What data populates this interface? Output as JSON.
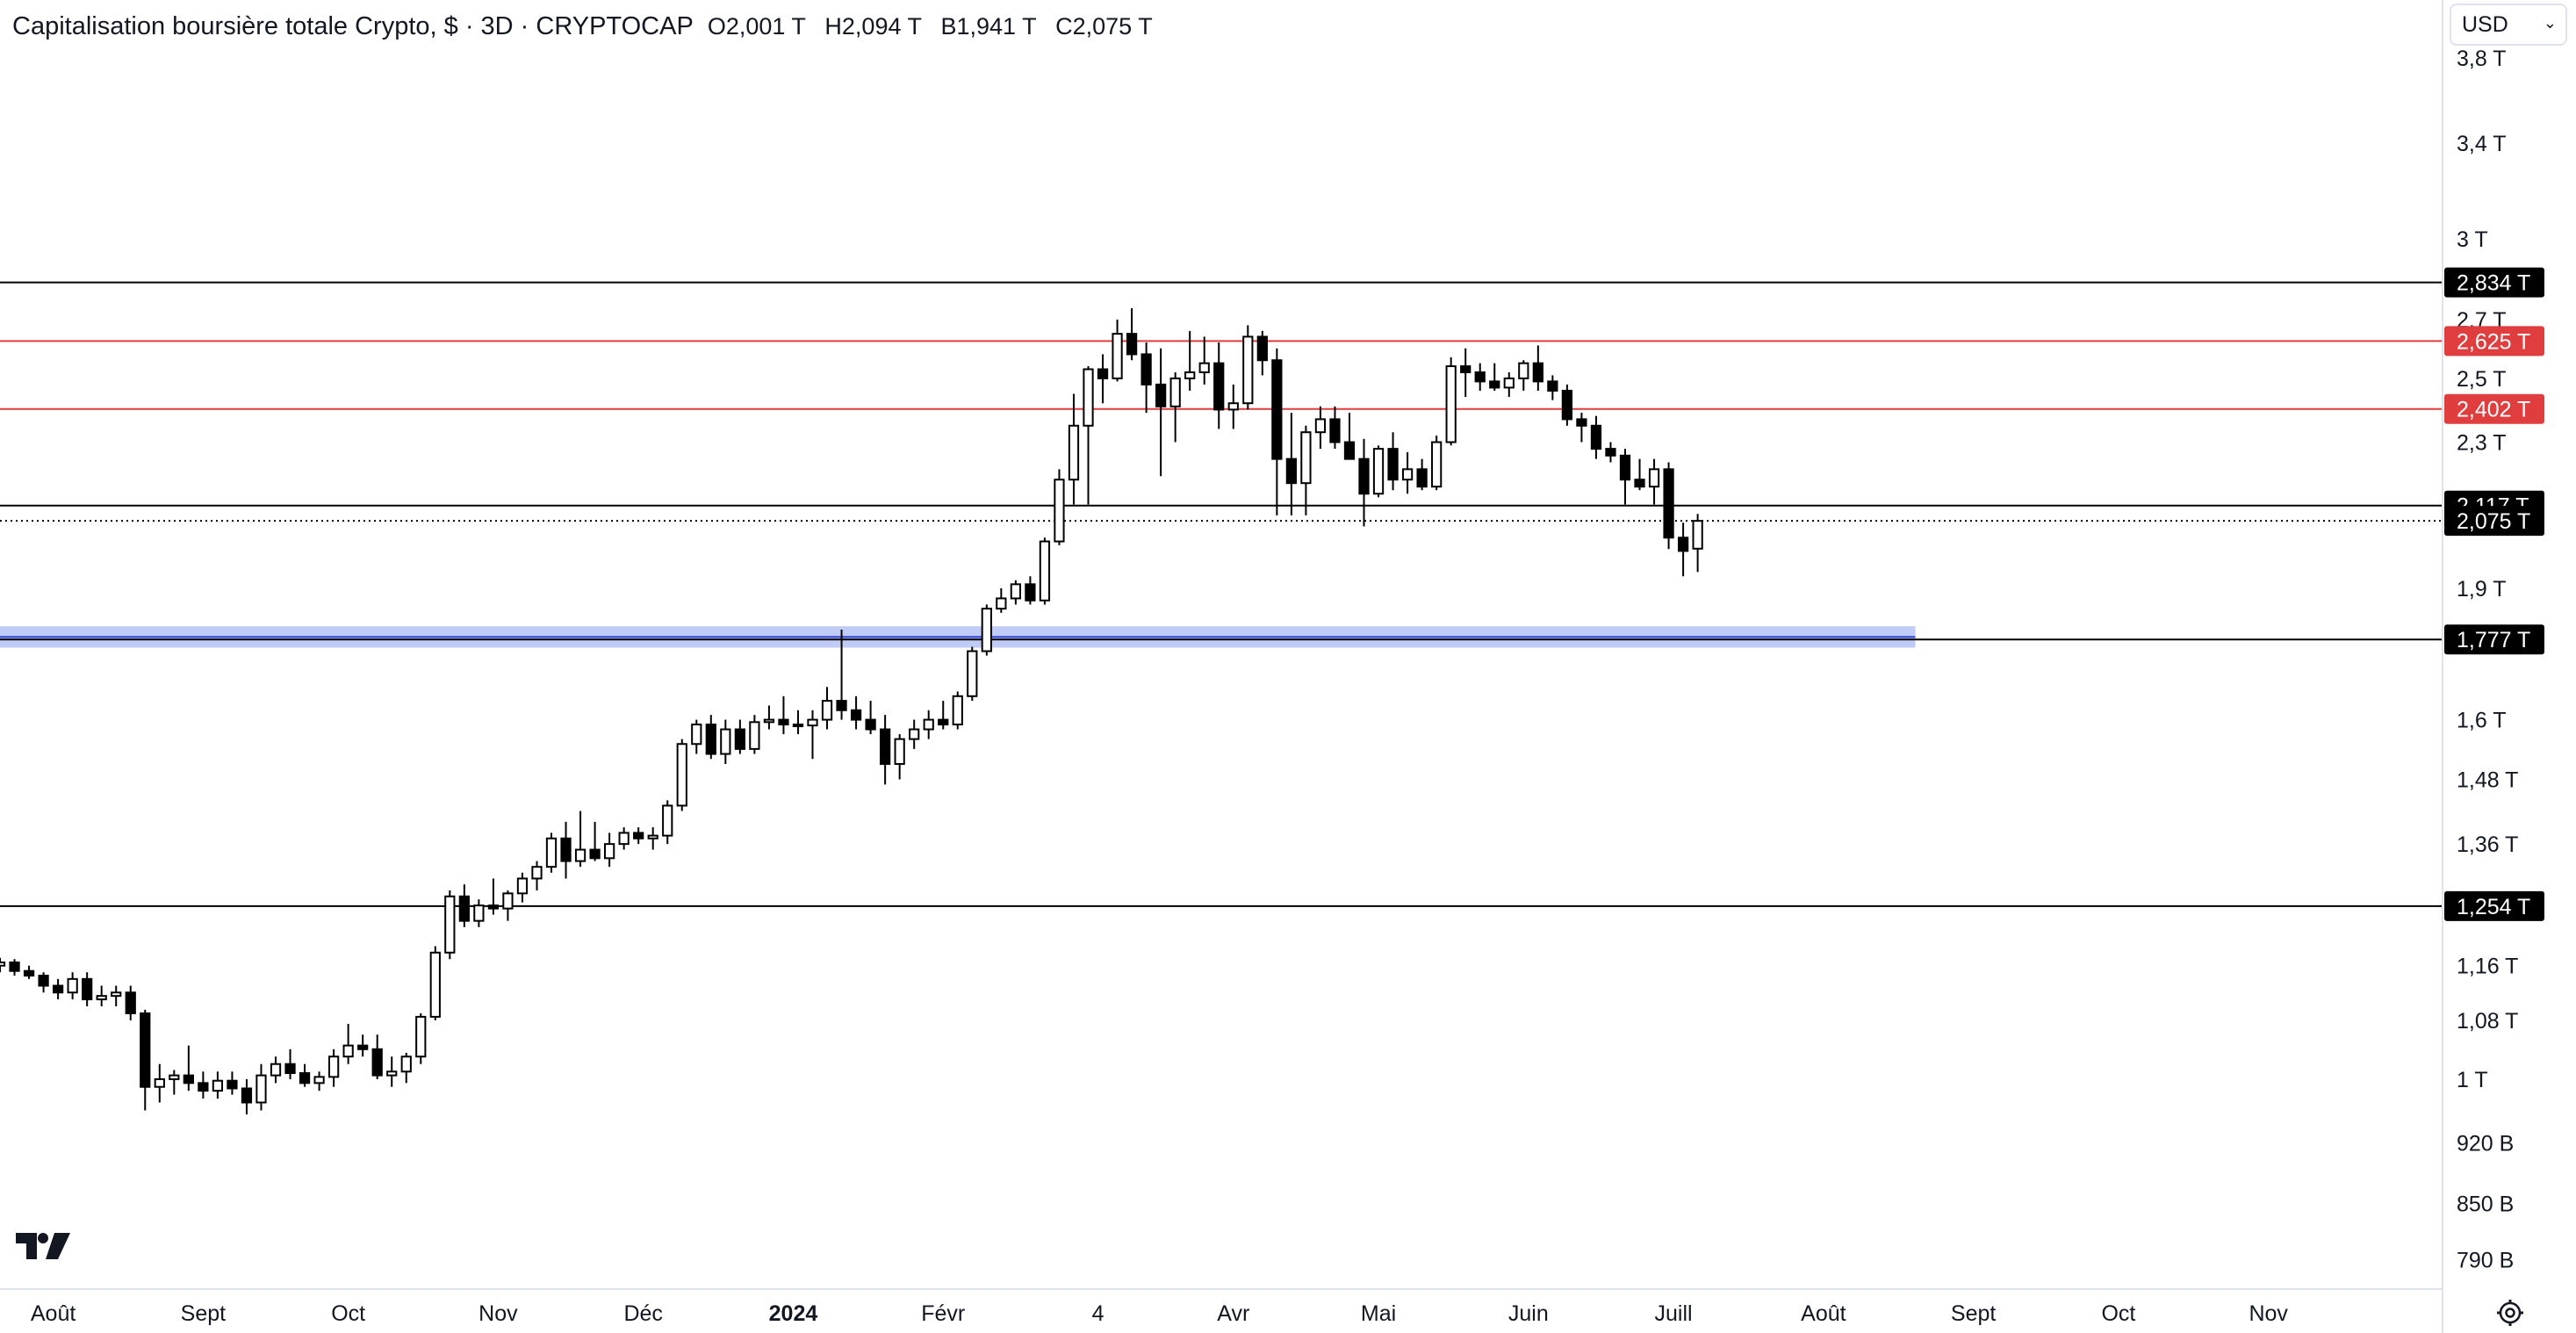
{
  "header": {
    "title": "Capitalisation boursière totale Crypto, $ · 3D · CRYPTOCAP",
    "open": "O2,001 T",
    "high": "H2,094 T",
    "low": "B1,941 T",
    "close": "C2,075 T"
  },
  "currency": {
    "label": "USD",
    "chevron": "chevron-down-icon"
  },
  "icons": {
    "logo": "tradingview-logo",
    "settings": "gear-icon"
  },
  "colors": {
    "background": "#ffffff",
    "up_candle_fill": "#ffffff",
    "down_candle_fill": "#000000",
    "candle_outline": "#000000",
    "support_line": "#000000",
    "resistance_line": "#e03e3e",
    "zone_fill": "#b6c3f5",
    "zone_line": "#2b3fd8",
    "axis_text": "#131722"
  },
  "chart_data": {
    "type": "candlestick",
    "scale": "log",
    "ylim": [
      0.76,
      4.1
    ],
    "y_unit": "T",
    "x_range": [
      "2023-07-21",
      "2024-12-07"
    ],
    "y_ticks": [
      {
        "value": 3.8,
        "label": "3,8 T"
      },
      {
        "value": 3.4,
        "label": "3,4 T"
      },
      {
        "value": 3.0,
        "label": "3 T"
      },
      {
        "value": 2.7,
        "label": "2,7 T"
      },
      {
        "value": 2.5,
        "label": "2,5 T"
      },
      {
        "value": 2.3,
        "label": "2,3 T"
      },
      {
        "value": 1.9,
        "label": "1,9 T"
      },
      {
        "value": 1.6,
        "label": "1,6 T"
      },
      {
        "value": 1.48,
        "label": "1,48 T"
      },
      {
        "value": 1.36,
        "label": "1,36 T"
      },
      {
        "value": 1.16,
        "label": "1,16 T"
      },
      {
        "value": 1.08,
        "label": "1,08 T"
      },
      {
        "value": 1.0,
        "label": "1 T"
      },
      {
        "value": 0.92,
        "label": "920 B"
      },
      {
        "value": 0.85,
        "label": "850 B"
      },
      {
        "value": 0.79,
        "label": "790 B"
      }
    ],
    "x_ticks": [
      {
        "date": "2023-08-01",
        "label": "Août",
        "bold": false
      },
      {
        "date": "2023-09-01",
        "label": "Sept",
        "bold": false
      },
      {
        "date": "2023-10-01",
        "label": "Oct",
        "bold": false
      },
      {
        "date": "2023-11-01",
        "label": "Nov",
        "bold": false
      },
      {
        "date": "2023-12-01",
        "label": "Déc",
        "bold": false
      },
      {
        "date": "2024-01-01",
        "label": "2024",
        "bold": true
      },
      {
        "date": "2024-02-01",
        "label": "Févr",
        "bold": false
      },
      {
        "date": "2024-03-04",
        "label": "4",
        "bold": false
      },
      {
        "date": "2024-04-01",
        "label": "Avr",
        "bold": false
      },
      {
        "date": "2024-05-01",
        "label": "Mai",
        "bold": false
      },
      {
        "date": "2024-06-01",
        "label": "Juin",
        "bold": false
      },
      {
        "date": "2024-07-01",
        "label": "Juill",
        "bold": false
      },
      {
        "date": "2024-08-01",
        "label": "Août",
        "bold": false
      },
      {
        "date": "2024-09-01",
        "label": "Sept",
        "bold": false
      },
      {
        "date": "2024-10-01",
        "label": "Oct",
        "bold": false
      },
      {
        "date": "2024-11-01",
        "label": "Nov",
        "bold": false
      }
    ],
    "levels": [
      {
        "value": 2.834,
        "label": "2,834 T",
        "color": "#000000",
        "style": "solid"
      },
      {
        "value": 2.625,
        "label": "2,625 T",
        "color": "#e03e3e",
        "style": "solid"
      },
      {
        "value": 2.402,
        "label": "2,402 T",
        "color": "#e03e3e",
        "style": "solid"
      },
      {
        "value": 2.117,
        "label": "2,117 T",
        "color": "#000000",
        "style": "solid"
      },
      {
        "value": 2.075,
        "label": "2,075 T",
        "color": "#000000",
        "style": "dotted"
      },
      {
        "value": 1.777,
        "label": "1,777 T",
        "color": "#000000",
        "style": "solid"
      },
      {
        "value": 1.254,
        "label": "1,254 T",
        "color": "#000000",
        "style": "solid"
      }
    ],
    "zone": {
      "low": 1.758,
      "high": 1.808,
      "end_date": "2024-08-20"
    },
    "candles": {
      "start_date": "2023-07-21",
      "interval_days": 3,
      "ohlc": [
        [
          1.16,
          1.172,
          1.15,
          1.165
        ],
        [
          1.165,
          1.17,
          1.145,
          1.152
        ],
        [
          1.152,
          1.16,
          1.14,
          1.145
        ],
        [
          1.145,
          1.15,
          1.12,
          1.13
        ],
        [
          1.13,
          1.14,
          1.11,
          1.12
        ],
        [
          1.12,
          1.15,
          1.11,
          1.14
        ],
        [
          1.14,
          1.15,
          1.1,
          1.11
        ],
        [
          1.11,
          1.13,
          1.1,
          1.115
        ],
        [
          1.115,
          1.13,
          1.1,
          1.12
        ],
        [
          1.12,
          1.13,
          1.08,
          1.09
        ],
        [
          1.09,
          1.095,
          0.96,
          0.99
        ],
        [
          0.99,
          1.02,
          0.97,
          1.0
        ],
        [
          1.0,
          1.012,
          0.98,
          1.005
        ],
        [
          1.005,
          1.045,
          0.985,
          0.995
        ],
        [
          0.995,
          1.01,
          0.975,
          0.985
        ],
        [
          0.985,
          1.01,
          0.975,
          0.998
        ],
        [
          0.998,
          1.01,
          0.98,
          0.988
        ],
        [
          0.988,
          1.0,
          0.955,
          0.97
        ],
        [
          0.97,
          1.02,
          0.96,
          1.005
        ],
        [
          1.005,
          1.03,
          0.995,
          1.02
        ],
        [
          1.02,
          1.04,
          1.0,
          1.008
        ],
        [
          1.008,
          1.02,
          0.99,
          0.995
        ],
        [
          0.995,
          1.01,
          0.985,
          1.003
        ],
        [
          1.003,
          1.04,
          0.99,
          1.03
        ],
        [
          1.03,
          1.075,
          1.02,
          1.045
        ],
        [
          1.045,
          1.06,
          1.03,
          1.04
        ],
        [
          1.04,
          1.06,
          1.0,
          1.005
        ],
        [
          1.005,
          1.03,
          0.99,
          1.01
        ],
        [
          1.01,
          1.035,
          0.995,
          1.03
        ],
        [
          1.03,
          1.09,
          1.02,
          1.085
        ],
        [
          1.085,
          1.19,
          1.08,
          1.18
        ],
        [
          1.18,
          1.28,
          1.17,
          1.27
        ],
        [
          1.27,
          1.29,
          1.22,
          1.23
        ],
        [
          1.23,
          1.265,
          1.22,
          1.255
        ],
        [
          1.255,
          1.3,
          1.24,
          1.25
        ],
        [
          1.25,
          1.28,
          1.23,
          1.275
        ],
        [
          1.275,
          1.31,
          1.26,
          1.3
        ],
        [
          1.3,
          1.33,
          1.28,
          1.32
        ],
        [
          1.32,
          1.38,
          1.31,
          1.37
        ],
        [
          1.37,
          1.4,
          1.3,
          1.33
        ],
        [
          1.33,
          1.42,
          1.32,
          1.35
        ],
        [
          1.35,
          1.4,
          1.33,
          1.335
        ],
        [
          1.335,
          1.38,
          1.32,
          1.36
        ],
        [
          1.36,
          1.39,
          1.35,
          1.38
        ],
        [
          1.38,
          1.39,
          1.36,
          1.37
        ],
        [
          1.37,
          1.39,
          1.35,
          1.375
        ],
        [
          1.375,
          1.44,
          1.36,
          1.43
        ],
        [
          1.43,
          1.56,
          1.42,
          1.55
        ],
        [
          1.55,
          1.6,
          1.53,
          1.59
        ],
        [
          1.59,
          1.61,
          1.52,
          1.53
        ],
        [
          1.53,
          1.6,
          1.51,
          1.58
        ],
        [
          1.58,
          1.6,
          1.53,
          1.54
        ],
        [
          1.54,
          1.61,
          1.53,
          1.595
        ],
        [
          1.595,
          1.63,
          1.58,
          1.6
        ],
        [
          1.6,
          1.65,
          1.57,
          1.59
        ],
        [
          1.59,
          1.62,
          1.57,
          1.588
        ],
        [
          1.588,
          1.62,
          1.52,
          1.6
        ],
        [
          1.6,
          1.67,
          1.58,
          1.64
        ],
        [
          1.64,
          1.8,
          1.6,
          1.62
        ],
        [
          1.62,
          1.65,
          1.58,
          1.6
        ],
        [
          1.6,
          1.64,
          1.57,
          1.58
        ],
        [
          1.58,
          1.61,
          1.47,
          1.51
        ],
        [
          1.51,
          1.57,
          1.48,
          1.56
        ],
        [
          1.56,
          1.6,
          1.54,
          1.58
        ],
        [
          1.58,
          1.62,
          1.56,
          1.6
        ],
        [
          1.6,
          1.64,
          1.58,
          1.59
        ],
        [
          1.59,
          1.66,
          1.58,
          1.65
        ],
        [
          1.65,
          1.76,
          1.64,
          1.75
        ],
        [
          1.75,
          1.86,
          1.74,
          1.85
        ],
        [
          1.85,
          1.9,
          1.84,
          1.875
        ],
        [
          1.875,
          1.92,
          1.86,
          1.91
        ],
        [
          1.91,
          1.93,
          1.86,
          1.87
        ],
        [
          1.87,
          2.03,
          1.86,
          2.02
        ],
        [
          2.02,
          2.22,
          2.01,
          2.19
        ],
        [
          2.19,
          2.45,
          2.12,
          2.35
        ],
        [
          2.35,
          2.54,
          2.12,
          2.53
        ],
        [
          2.53,
          2.58,
          2.42,
          2.5
        ],
        [
          2.5,
          2.7,
          2.49,
          2.65
        ],
        [
          2.65,
          2.74,
          2.56,
          2.58
        ],
        [
          2.58,
          2.62,
          2.39,
          2.48
        ],
        [
          2.48,
          2.6,
          2.2,
          2.41
        ],
        [
          2.41,
          2.52,
          2.3,
          2.5
        ],
        [
          2.5,
          2.66,
          2.46,
          2.52
        ],
        [
          2.52,
          2.64,
          2.48,
          2.55
        ],
        [
          2.55,
          2.62,
          2.34,
          2.4
        ],
        [
          2.4,
          2.48,
          2.34,
          2.42
        ],
        [
          2.42,
          2.68,
          2.4,
          2.64
        ],
        [
          2.64,
          2.66,
          2.51,
          2.56
        ],
        [
          2.56,
          2.6,
          2.09,
          2.25
        ],
        [
          2.25,
          2.39,
          2.09,
          2.18
        ],
        [
          2.18,
          2.35,
          2.09,
          2.33
        ],
        [
          2.33,
          2.41,
          2.28,
          2.37
        ],
        [
          2.37,
          2.41,
          2.28,
          2.3
        ],
        [
          2.3,
          2.39,
          2.25,
          2.25
        ],
        [
          2.25,
          2.31,
          2.06,
          2.15
        ],
        [
          2.15,
          2.29,
          2.14,
          2.28
        ],
        [
          2.28,
          2.33,
          2.16,
          2.19
        ],
        [
          2.19,
          2.27,
          2.15,
          2.22
        ],
        [
          2.22,
          2.25,
          2.16,
          2.17
        ],
        [
          2.17,
          2.32,
          2.16,
          2.3
        ],
        [
          2.3,
          2.57,
          2.29,
          2.54
        ],
        [
          2.54,
          2.6,
          2.44,
          2.52
        ],
        [
          2.52,
          2.55,
          2.46,
          2.49
        ],
        [
          2.49,
          2.55,
          2.46,
          2.47
        ],
        [
          2.47,
          2.52,
          2.44,
          2.5
        ],
        [
          2.5,
          2.56,
          2.46,
          2.55
        ],
        [
          2.55,
          2.61,
          2.46,
          2.49
        ],
        [
          2.49,
          2.51,
          2.43,
          2.46
        ],
        [
          2.46,
          2.48,
          2.35,
          2.37
        ],
        [
          2.37,
          2.39,
          2.3,
          2.35
        ],
        [
          2.35,
          2.38,
          2.25,
          2.28
        ],
        [
          2.28,
          2.3,
          2.24,
          2.26
        ],
        [
          2.26,
          2.28,
          2.12,
          2.19
        ],
        [
          2.19,
          2.25,
          2.16,
          2.17
        ],
        [
          2.17,
          2.25,
          2.12,
          2.22
        ],
        [
          2.22,
          2.24,
          2.0,
          2.03
        ],
        [
          2.03,
          2.07,
          1.93,
          1.995
        ],
        [
          2.001,
          2.094,
          1.941,
          2.075
        ]
      ]
    }
  }
}
